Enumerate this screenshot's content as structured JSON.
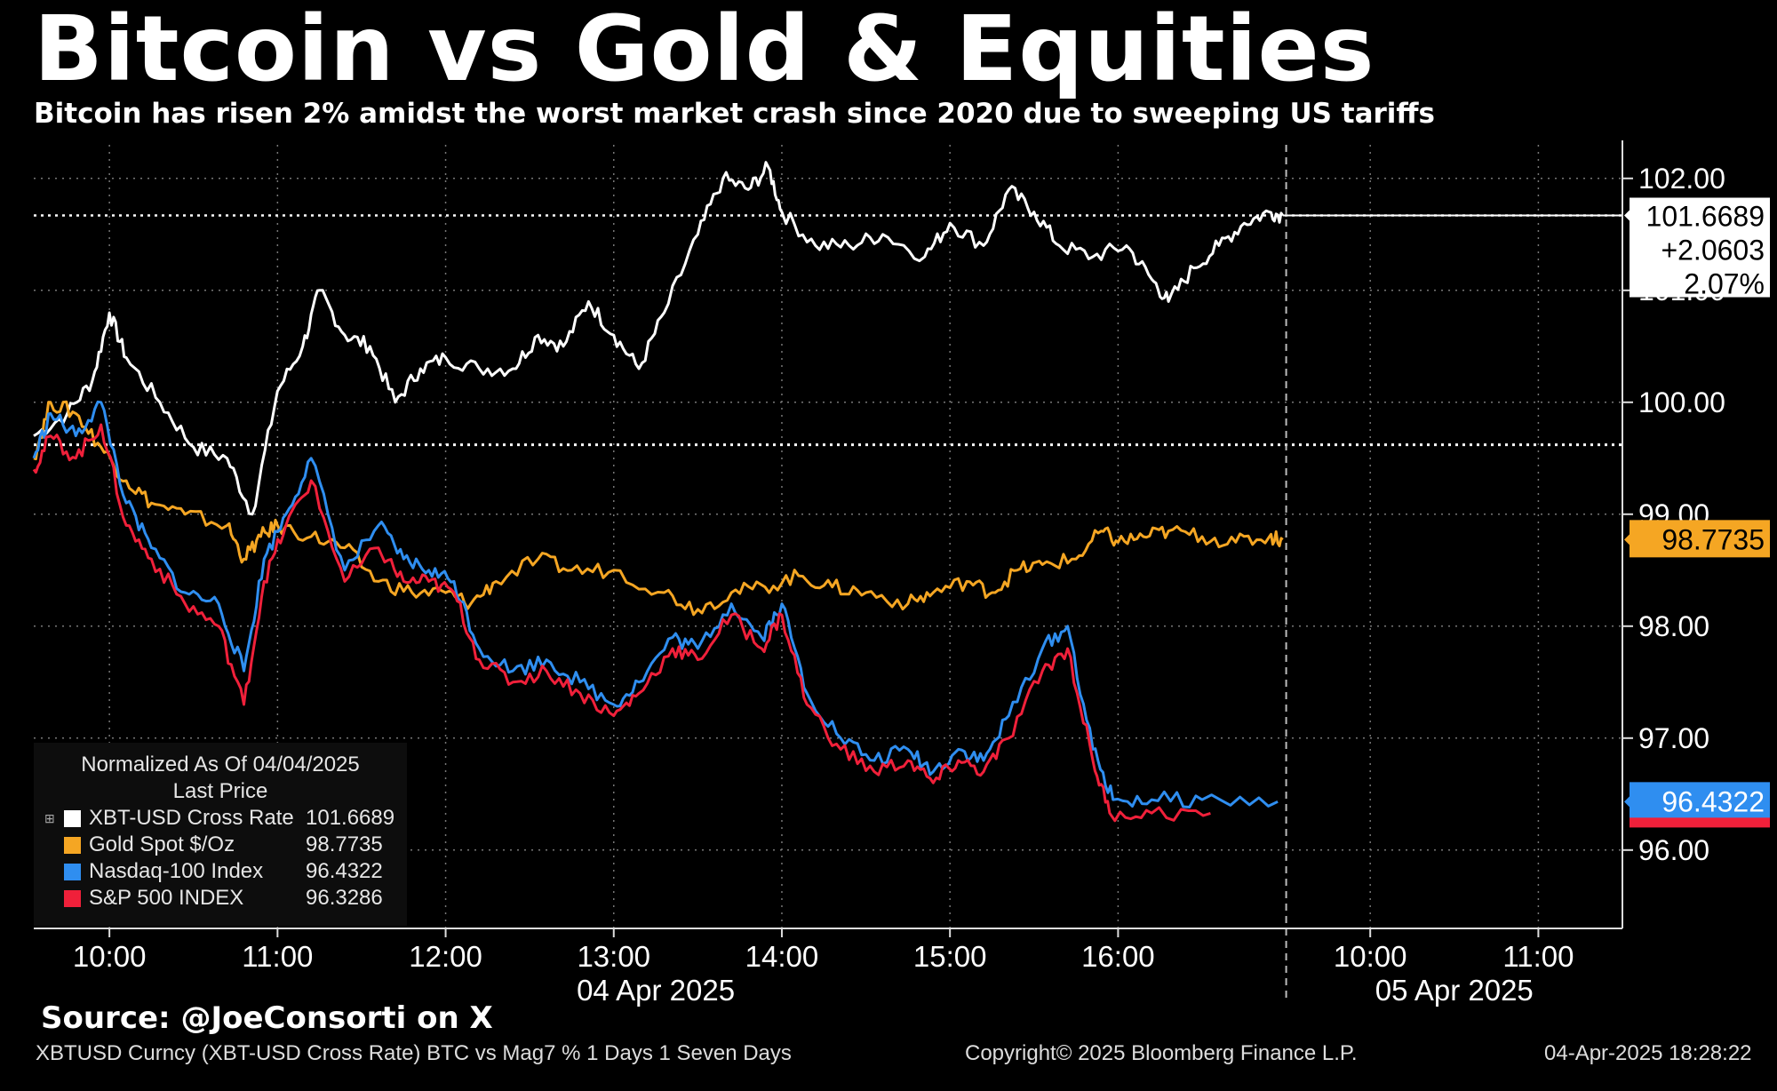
{
  "title": "Bitcoin vs Gold & Equities",
  "subtitle": "Bitcoin has risen 2% amidst the worst market crash since 2020 due to sweeping US tariffs",
  "source": "Source: @JoeConsorti on X",
  "footer": {
    "left": "XBTUSD Curncy (XBT-USD Cross Rate) BTC vs Mag7 % 1 Days 1 Seven Days",
    "center": "Copyright© 2025 Bloomberg Finance L.P.",
    "right": "04-Apr-2025 18:28:22"
  },
  "legend": {
    "header1": "Normalized As Of 04/04/2025",
    "header2": "Last Price",
    "expand_glyph": "⊞",
    "items": [
      {
        "name": "XBT-USD Cross Rate",
        "value": "101.6689",
        "color": "#ffffff"
      },
      {
        "name": "Gold Spot $/Oz",
        "value": "98.7735",
        "color": "#f5a623"
      },
      {
        "name": "Nasdaq-100 Index",
        "value": "96.4322",
        "color": "#2f8ef0"
      },
      {
        "name": "S&P 500 INDEX",
        "value": "96.3286",
        "color": "#f0203a"
      }
    ]
  },
  "chart_data": {
    "type": "line",
    "title": "Bitcoin vs Gold & Equities",
    "y_range": [
      95.3,
      102.3
    ],
    "y_ticks": [
      "102.00",
      "101.00",
      "100.00",
      "99.00",
      "98.00",
      "97.00",
      "96.00"
    ],
    "y_tick_values": [
      102,
      101,
      100,
      99,
      98,
      97,
      96
    ],
    "x_range_hours": [
      9.55,
      19.0
    ],
    "x_ticks": [
      "10:00",
      "11:00",
      "12:00",
      "13:00",
      "14:00",
      "15:00",
      "16:00",
      "10:00",
      "11:00"
    ],
    "x_tick_hours": [
      10,
      11,
      12,
      13,
      14,
      15,
      16,
      17.5,
      18.5
    ],
    "date_labels": [
      "04 Apr 2025",
      "05 Apr 2025"
    ],
    "date_label_hours": [
      13.25,
      18.0
    ],
    "day_divider_hour": 17,
    "reference_line": 99.62,
    "series": [
      {
        "name": "XBT-USD Cross Rate",
        "color": "#ffffff",
        "last": 101.6689,
        "last_labels": [
          "101.6689",
          "+2.0603",
          "2.07%"
        ],
        "x": [
          9.55,
          9.75,
          9.9,
          10.0,
          10.1,
          10.3,
          10.5,
          10.7,
          10.85,
          11.0,
          11.15,
          11.25,
          11.4,
          11.55,
          11.7,
          11.85,
          12.0,
          12.2,
          12.4,
          12.55,
          12.7,
          12.85,
          13.0,
          13.15,
          13.3,
          13.5,
          13.65,
          13.8,
          13.92,
          14.0,
          14.2,
          14.4,
          14.6,
          14.85,
          15.0,
          15.2,
          15.35,
          15.5,
          15.65,
          15.85,
          16.05,
          16.2,
          16.3,
          16.45,
          16.6,
          16.75,
          16.9,
          16.98
        ],
        "y": [
          99.7,
          99.9,
          100.2,
          100.8,
          100.4,
          100.0,
          99.6,
          99.5,
          99.0,
          100.1,
          100.5,
          101.0,
          100.6,
          100.5,
          100.0,
          100.3,
          100.4,
          100.3,
          100.3,
          100.6,
          100.5,
          100.9,
          100.6,
          100.3,
          100.8,
          101.5,
          102.0,
          101.9,
          102.1,
          101.7,
          101.4,
          101.4,
          101.5,
          101.3,
          101.6,
          101.4,
          101.9,
          101.7,
          101.4,
          101.3,
          101.4,
          101.1,
          100.9,
          101.2,
          101.4,
          101.6,
          101.7,
          101.6689
        ]
      },
      {
        "name": "Gold Spot $/Oz",
        "color": "#f5a623",
        "last": 98.7735,
        "x": [
          9.55,
          9.65,
          9.8,
          9.95,
          10.1,
          10.25,
          10.45,
          10.7,
          10.8,
          10.9,
          11.0,
          11.2,
          11.4,
          11.6,
          11.8,
          12.0,
          12.15,
          12.3,
          12.55,
          12.75,
          13.0,
          13.3,
          13.5,
          13.7,
          13.9,
          14.1,
          14.3,
          14.5,
          14.75,
          14.9,
          15.1,
          15.25,
          15.4,
          15.55,
          15.75,
          15.9,
          16.0,
          16.15,
          16.3,
          16.5,
          16.7,
          16.9,
          16.98
        ],
        "y": [
          99.5,
          100.0,
          99.9,
          99.6,
          99.3,
          99.1,
          99.0,
          98.9,
          98.6,
          98.8,
          98.9,
          98.8,
          98.7,
          98.4,
          98.3,
          98.3,
          98.2,
          98.4,
          98.6,
          98.5,
          98.5,
          98.3,
          98.15,
          98.3,
          98.35,
          98.45,
          98.35,
          98.3,
          98.2,
          98.3,
          98.4,
          98.3,
          98.5,
          98.55,
          98.6,
          98.85,
          98.75,
          98.8,
          98.85,
          98.8,
          98.75,
          98.8,
          98.7735
        ]
      },
      {
        "name": "Nasdaq-100 Index",
        "color": "#2f8ef0",
        "last": 96.4322,
        "x": [
          9.55,
          9.65,
          9.8,
          9.95,
          10.1,
          10.25,
          10.45,
          10.65,
          10.8,
          10.92,
          11.05,
          11.2,
          11.4,
          11.6,
          11.75,
          11.9,
          12.05,
          12.2,
          12.4,
          12.6,
          12.8,
          13.0,
          13.15,
          13.35,
          13.5,
          13.7,
          13.88,
          14.0,
          14.15,
          14.35,
          14.55,
          14.75,
          14.9,
          15.05,
          15.2,
          15.35,
          15.55,
          15.7,
          15.85,
          15.97,
          16.2,
          16.5,
          16.95
        ],
        "y": [
          99.5,
          99.9,
          99.7,
          100.0,
          99.1,
          98.7,
          98.3,
          98.2,
          97.6,
          98.6,
          99.0,
          99.5,
          98.5,
          98.9,
          98.6,
          98.5,
          98.4,
          97.8,
          97.6,
          97.7,
          97.5,
          97.3,
          97.5,
          97.9,
          97.8,
          98.2,
          97.9,
          98.2,
          97.4,
          97.0,
          96.8,
          96.9,
          96.7,
          96.9,
          96.8,
          97.2,
          97.8,
          98.0,
          96.9,
          96.45,
          96.45,
          96.45,
          96.4322
        ]
      },
      {
        "name": "S&P 500 INDEX",
        "color": "#f0203a",
        "last": 96.3286,
        "x": [
          9.55,
          9.65,
          9.8,
          9.95,
          10.1,
          10.25,
          10.45,
          10.65,
          10.8,
          10.92,
          11.05,
          11.2,
          11.4,
          11.6,
          11.75,
          11.9,
          12.05,
          12.2,
          12.4,
          12.6,
          12.8,
          13.0,
          13.15,
          13.35,
          13.5,
          13.7,
          13.88,
          14.0,
          14.15,
          14.35,
          14.55,
          14.75,
          14.9,
          15.05,
          15.2,
          15.35,
          15.55,
          15.7,
          15.85,
          15.95,
          16.2,
          16.55
        ],
        "y": [
          99.4,
          99.7,
          99.5,
          99.8,
          98.9,
          98.6,
          98.2,
          98.0,
          97.3,
          98.4,
          98.9,
          99.3,
          98.4,
          98.7,
          98.4,
          98.4,
          98.3,
          97.7,
          97.5,
          97.6,
          97.4,
          97.2,
          97.4,
          97.8,
          97.7,
          98.1,
          97.8,
          98.1,
          97.3,
          96.9,
          96.7,
          96.8,
          96.6,
          96.8,
          96.7,
          97.0,
          97.6,
          97.8,
          96.8,
          96.33,
          96.33,
          96.3286
        ]
      }
    ],
    "right_labels": [
      "98.7735",
      "96.4322"
    ]
  }
}
